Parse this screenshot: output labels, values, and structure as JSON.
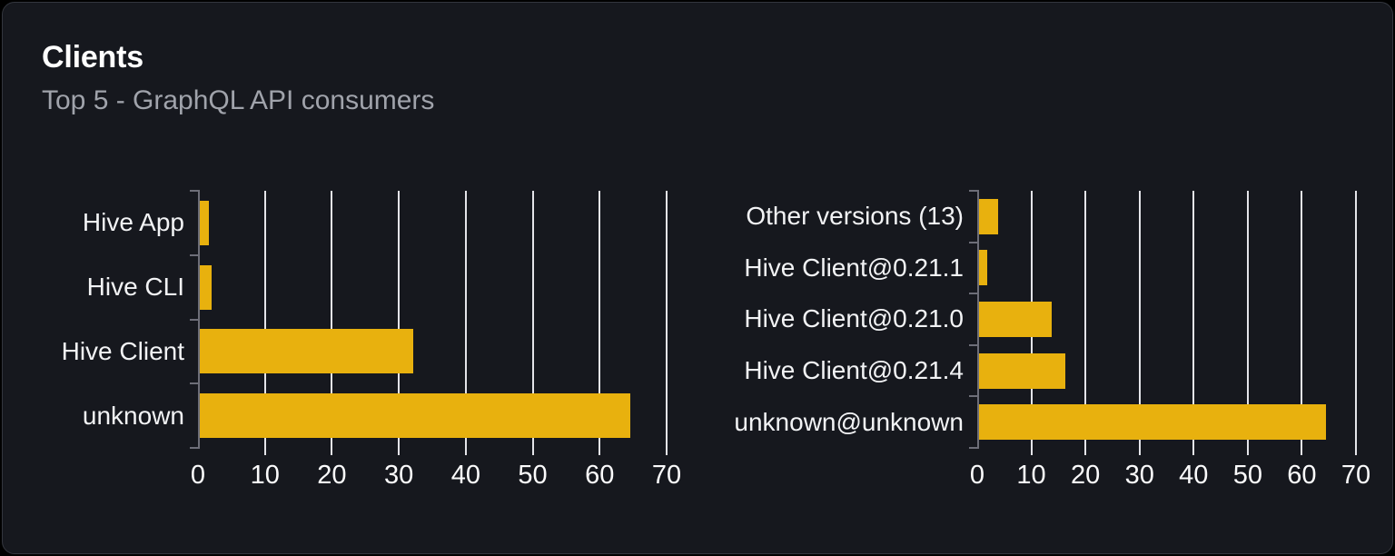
{
  "card": {
    "title": "Clients",
    "subtitle": "Top 5 - GraphQL API consumers"
  },
  "colors": {
    "bar": "#e8b10e",
    "gridline": "#e4e4e9",
    "axis": "#6d6e78",
    "card_background": "#16181e",
    "card_border": "#33363e",
    "page_background": "#000000",
    "title_text": "#ffffff",
    "subtitle_text": "#a0a3ab",
    "label_text": "#f2f3f5",
    "tick_text": "#fbfbfc"
  },
  "chart_data": [
    {
      "type": "bar",
      "orientation": "horizontal",
      "name": "top-clients",
      "categories": [
        "Hive App",
        "Hive CLI",
        "Hive Client",
        "unknown"
      ],
      "values": [
        1.3,
        1.8,
        32,
        64.5
      ],
      "x_ticks": [
        0,
        10,
        20,
        30,
        40,
        50,
        60,
        70
      ],
      "xlim": [
        0,
        70
      ],
      "grid": true,
      "legend": false,
      "bar_color": "#e8b10e"
    },
    {
      "type": "bar",
      "orientation": "horizontal",
      "name": "top-client-versions",
      "categories": [
        "Other versions (13)",
        "Hive Client@0.21.1",
        "Hive Client@0.21.0",
        "Hive Client@0.21.4",
        "unknown@unknown"
      ],
      "values": [
        3.5,
        1.5,
        13.5,
        16,
        64.5
      ],
      "x_ticks": [
        0,
        10,
        20,
        30,
        40,
        50,
        60,
        70
      ],
      "xlim": [
        0,
        70
      ],
      "grid": true,
      "legend": false,
      "bar_color": "#e8b10e"
    }
  ]
}
